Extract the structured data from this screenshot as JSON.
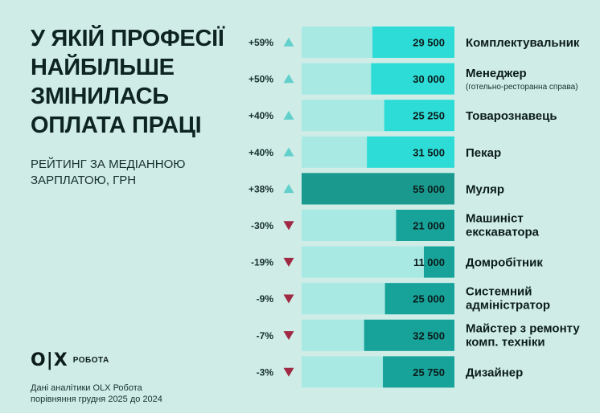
{
  "title_lines": [
    "У ЯКІЙ ПРОФЕСІЇ",
    "НАЙБІЛЬШЕ",
    "ЗМІНИЛАСЬ",
    "ОПЛАТА ПРАЦІ"
  ],
  "subtitle_lines": [
    "РЕЙТИНГ ЗА МЕДІАННОЮ",
    "ЗАРПЛАТОЮ, ГРН"
  ],
  "logo": {
    "mark": "O|X",
    "text": "РОБОТА"
  },
  "footer_lines": [
    "Дані аналітики OLX Робота",
    "порівняння грудня 2025 до 2024"
  ],
  "colors": {
    "background": "#cfece7",
    "track": "#a9e9e4",
    "bar_up": "#2edcd7",
    "bar_down": "#17a39a",
    "highlight_row": "#1a9a8f",
    "arrow_up": "#63d0cc",
    "arrow_down": "#a02a43"
  },
  "chart_data": {
    "type": "bar",
    "orientation": "horizontal",
    "title": "У ЯКІЙ ПРОФЕСІЇ НАЙБІЛЬШЕ ЗМІНИЛАСЬ ОПЛАТА ПРАЦІ",
    "subtitle": "РЕЙТИНГ ЗА МЕДІАННОЮ ЗАРПЛАТОЮ, ГРН",
    "xlim": [
      0,
      55000
    ],
    "items": [
      {
        "category": [
          "Комплектувальник"
        ],
        "value": 29500,
        "value_label": "29 500",
        "change": "+59%",
        "direction": "up"
      },
      {
        "category": [
          "Менеджер"
        ],
        "category_note": "(готельно-ресторанна справа)",
        "value": 30000,
        "value_label": "30 000",
        "change": "+50%",
        "direction": "up"
      },
      {
        "category": [
          "Товарознавець"
        ],
        "value": 25250,
        "value_label": "25 250",
        "change": "+40%",
        "direction": "up"
      },
      {
        "category": [
          "Пекар"
        ],
        "value": 31500,
        "value_label": "31 500",
        "change": "+40%",
        "direction": "up"
      },
      {
        "category": [
          "Муляр"
        ],
        "value": 55000,
        "value_label": "55 000",
        "change": "+38%",
        "direction": "up",
        "highlight": true
      },
      {
        "category": [
          "Машиніст",
          "екскаватора"
        ],
        "value": 21000,
        "value_label": "21 000",
        "change": "-30%",
        "direction": "down"
      },
      {
        "category": [
          "Домробітник"
        ],
        "value": 11000,
        "value_label": "11 000",
        "change": "-19%",
        "direction": "down"
      },
      {
        "category": [
          "Системний",
          "адміністратор"
        ],
        "value": 25000,
        "value_label": "25 000",
        "change": "-9%",
        "direction": "down"
      },
      {
        "category": [
          "Майстер з ремонту",
          "комп. техніки"
        ],
        "value": 32500,
        "value_label": "32 500",
        "change": "-7%",
        "direction": "down"
      },
      {
        "category": [
          "Дизайнер"
        ],
        "value": 25750,
        "value_label": "25 750",
        "change": "-3%",
        "direction": "down"
      }
    ]
  }
}
